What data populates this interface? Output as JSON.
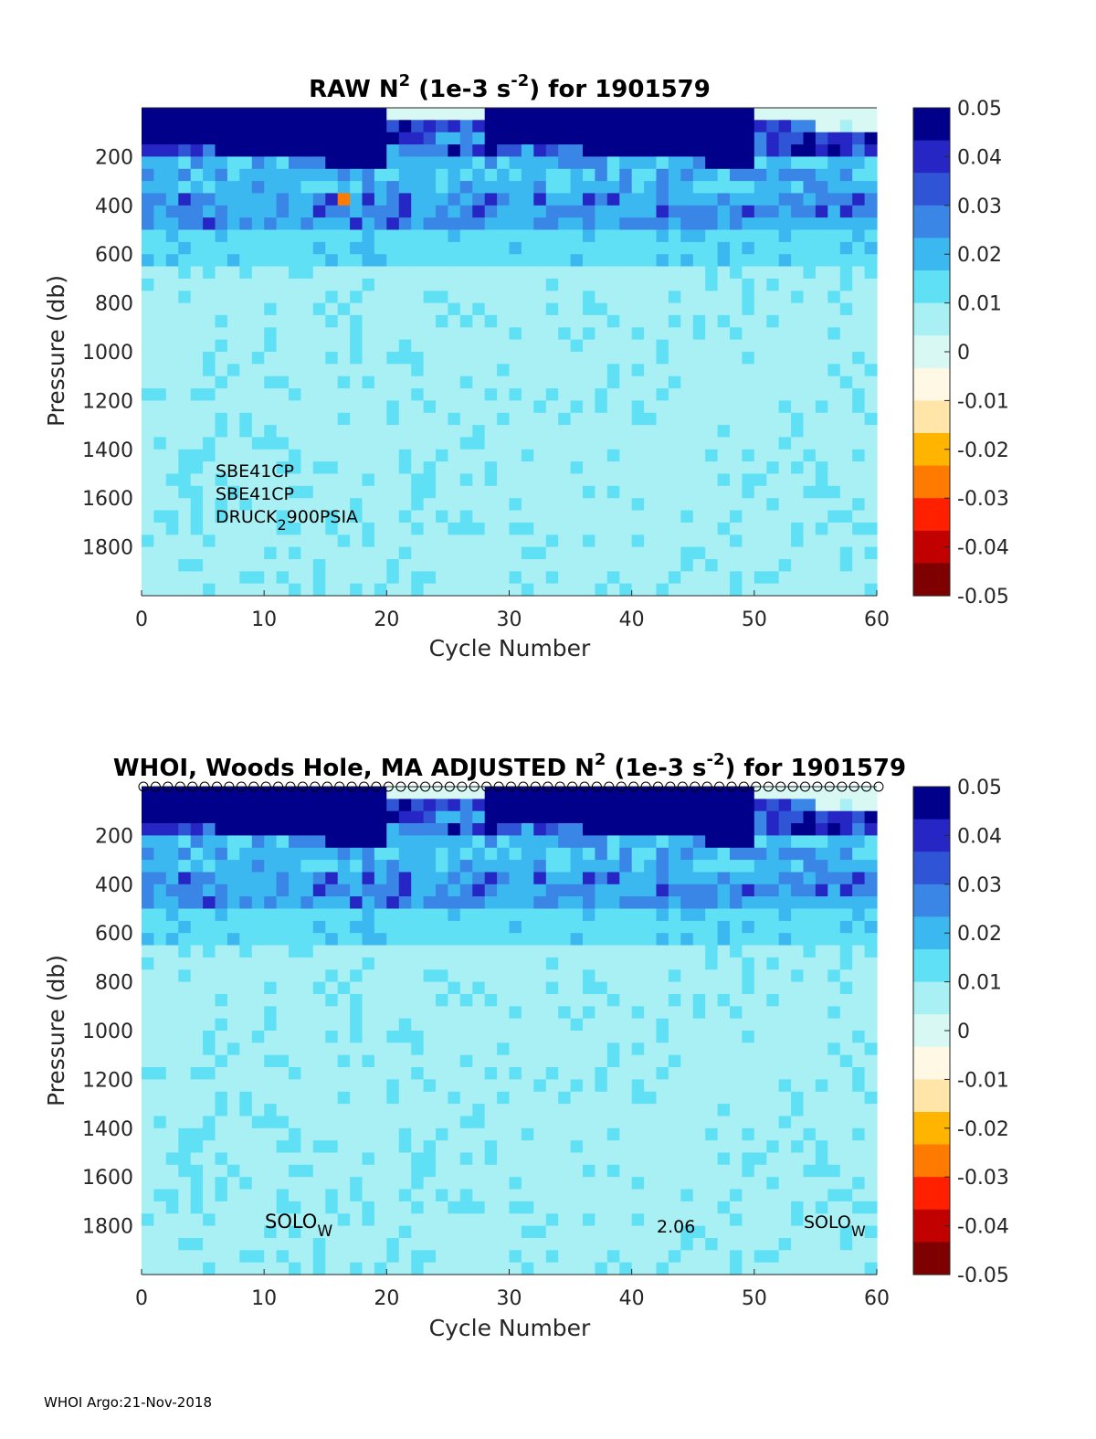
{
  "footer": "WHOI Argo:21-Nov-2018",
  "colors": {
    "colormap": [
      "#7f0000",
      "#c10000",
      "#ff2000",
      "#ff7a00",
      "#ffb400",
      "#ffe6a8",
      "#fff8e4",
      "#d8f8f4",
      "#a8f0f4",
      "#60e0f4",
      "#3cb8f0",
      "#3a86e6",
      "#2f55d6",
      "#2626c4",
      "#00008a"
    ]
  },
  "chart_data": [
    {
      "type": "heatmap",
      "title_main": "RAW N",
      "title_sup": "2",
      "title_mid": " (1e-3 s",
      "title_sup2": "-2",
      "title_end": ") for 1901579",
      "xlabel": "Cycle Number",
      "ylabel": "Pressure (db)",
      "xlim": [
        0,
        60
      ],
      "ylim": [
        2000,
        0
      ],
      "xticks": [
        "0",
        "10",
        "20",
        "30",
        "40",
        "50",
        "60"
      ],
      "yticks": [
        "200",
        "400",
        "600",
        "800",
        "1000",
        "1200",
        "1400",
        "1600",
        "1800"
      ],
      "colorbar": {
        "clim": [
          -0.05,
          0.05
        ],
        "ticks": [
          "0.05",
          "0.04",
          "0.03",
          "0.02",
          "0.01",
          "0",
          "-0.01",
          "-0.02",
          "-0.03",
          "-0.04",
          "-0.05"
        ]
      },
      "annotations": {
        "sensor1": "SBE41CP",
        "sensor2": "SBE41CP",
        "sensor3_a": "DRUCK",
        "sensor3_sub": "2",
        "sensor3_b": "900PSIA"
      },
      "pattern": {
        "deep_value": 0.008,
        "thermocline_value": 0.025,
        "surface_value": 0.05,
        "outlier": {
          "cycle": 16,
          "pressure": 360,
          "value": -0.03
        }
      }
    },
    {
      "type": "heatmap",
      "title_main": "WHOI, Woods Hole, MA  ADJUSTED N",
      "title_sup": "2",
      "title_mid": " (1e-3 s",
      "title_sup2": "-2",
      "title_end": ") for 1901579",
      "xlabel": "Cycle Number",
      "ylabel": "Pressure (db)",
      "xlim": [
        0,
        60
      ],
      "ylim": [
        2000,
        0
      ],
      "xticks": [
        "0",
        "10",
        "20",
        "30",
        "40",
        "50",
        "60"
      ],
      "yticks": [
        "200",
        "400",
        "600",
        "800",
        "1000",
        "1200",
        "1400",
        "1600",
        "1800"
      ],
      "colorbar": {
        "clim": [
          -0.05,
          0.05
        ],
        "ticks": [
          "0.05",
          "0.04",
          "0.03",
          "0.02",
          "0.01",
          "0",
          "-0.01",
          "-0.02",
          "-0.03",
          "-0.04",
          "-0.05"
        ]
      },
      "annotations": {
        "left_a": "SOLO",
        "left_sub": "W",
        "mid": "2.06",
        "right_a": "SOLO",
        "right_sub": "W"
      },
      "qc_markers": "circles along top for every cycle 1-60"
    }
  ]
}
